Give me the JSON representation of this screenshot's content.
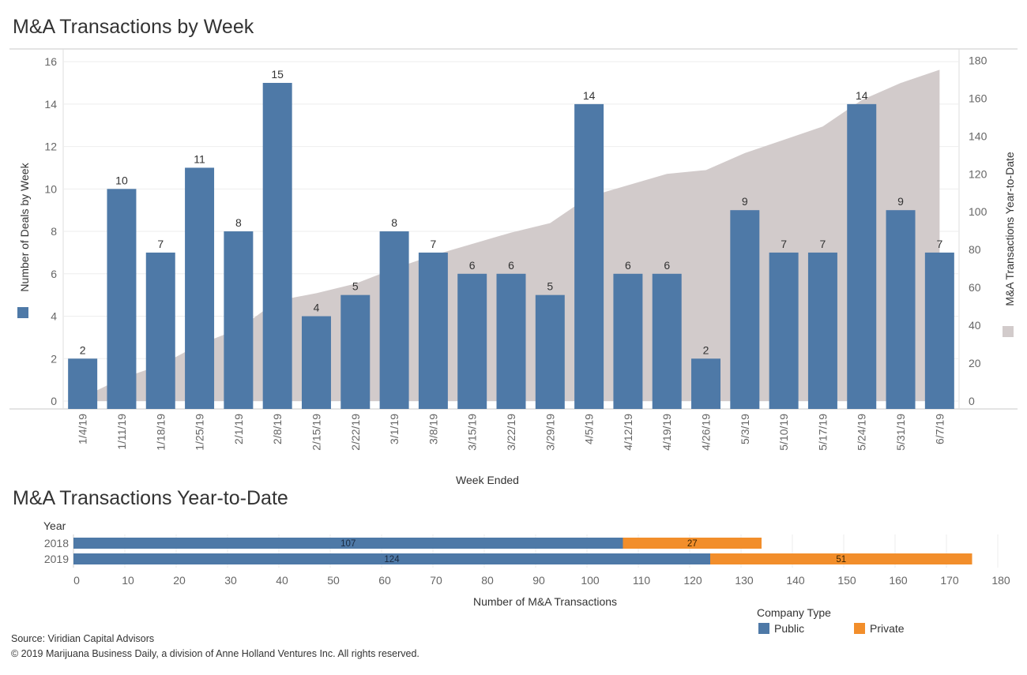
{
  "colors": {
    "public": "#4e79a7",
    "private": "#f28e2b",
    "ytd_area": "#d2cbcb",
    "weekly_bar": "#4e79a7"
  },
  "footer": {
    "source": "Source: Viridian Capital Advisors",
    "copyright": "© 2019 Marijuana Business Daily, a division of Anne Holland Ventures Inc. All rights reserved."
  },
  "chart_data": [
    {
      "type": "bar",
      "title": "M&A Transactions by Week",
      "xlabel": "Week Ended",
      "ylabel": "Number of Deals by Week",
      "y2label": "M&A Transactions Year-to-Date",
      "categories": [
        "1/4/19",
        "1/11/19",
        "1/18/19",
        "1/25/19",
        "2/1/19",
        "2/8/19",
        "2/15/19",
        "2/22/19",
        "3/1/19",
        "3/8/19",
        "3/15/19",
        "3/22/19",
        "3/29/19",
        "4/5/19",
        "4/12/19",
        "4/19/19",
        "4/26/19",
        "5/3/19",
        "5/10/19",
        "5/17/19",
        "5/24/19",
        "5/31/19",
        "6/7/19"
      ],
      "series": [
        {
          "type": "bar",
          "axis": "left",
          "values": [
            2,
            10,
            7,
            11,
            8,
            15,
            4,
            5,
            8,
            7,
            6,
            6,
            5,
            14,
            6,
            6,
            2,
            9,
            7,
            7,
            14,
            9,
            7
          ]
        },
        {
          "type": "area",
          "axis": "right",
          "values": [
            2,
            12,
            19,
            30,
            38,
            53,
            57,
            62,
            70,
            77,
            83,
            89,
            94,
            108,
            114,
            120,
            122,
            131,
            138,
            145,
            159,
            168,
            175
          ]
        }
      ],
      "ylim": [
        0,
        16.6
      ],
      "y_ticks": [
        0,
        2,
        4,
        6,
        8,
        10,
        12,
        14,
        16
      ],
      "y2lim": [
        0,
        186
      ],
      "y2_ticks": [
        0,
        20,
        40,
        60,
        80,
        100,
        120,
        140,
        160,
        180
      ],
      "gridlines": true
    },
    {
      "type": "bar",
      "orientation": "horizontal",
      "stacked": true,
      "title": "M&A Transactions Year-to-Date",
      "ylabel": "Year",
      "xlabel": "Number of M&A Transactions",
      "categories": [
        "2018",
        "2019"
      ],
      "series": [
        {
          "name": "Public",
          "values": [
            107,
            124
          ]
        },
        {
          "name": "Private",
          "values": [
            27,
            51
          ]
        }
      ],
      "xlim": [
        0,
        180
      ],
      "x_ticks": [
        0,
        10,
        20,
        30,
        40,
        50,
        60,
        70,
        80,
        90,
        100,
        110,
        120,
        130,
        140,
        150,
        160,
        170,
        180
      ],
      "legend": {
        "title": "Company Type",
        "position": "bottom-right"
      }
    }
  ]
}
